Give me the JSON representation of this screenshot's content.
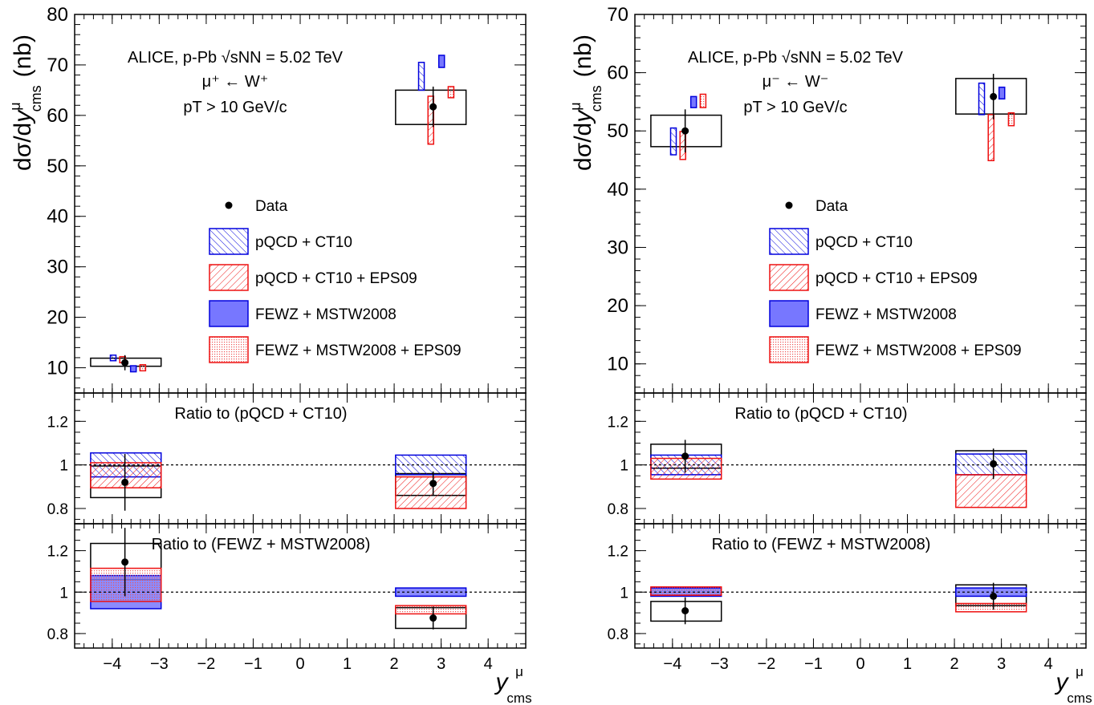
{
  "colors": {
    "data": "#000000",
    "ct10": "#0000dd",
    "eps09": "#ee1111",
    "fewz_fill": "#7777ff",
    "fewz_eps_fill": "#ffaaaa"
  },
  "axis_text": {
    "ylabel_main": "dσ/dy",
    "ylabel_sup": "μ",
    "ylabel_sub": "cms",
    "ylabel_unit": "(nb)",
    "xlabel_main": "y",
    "xlabel_sup": "μ",
    "xlabel_sub": "cms",
    "x_ticks": [
      "−4",
      "−3",
      "−2",
      "−1",
      "0",
      "1",
      "2",
      "3",
      "4"
    ],
    "ratio_ticks": [
      "0.8",
      "1",
      "1.2"
    ]
  },
  "legend": {
    "data": "Data",
    "ct10": "pQCD + CT10",
    "ct10_eps": "pQCD + CT10 + EPS09",
    "fewz": "FEWZ + MSTW2008",
    "fewz_eps": "FEWZ + MSTW2008 + EPS09"
  },
  "ratio_labels": {
    "ct10": "Ratio to (pQCD + CT10)",
    "fewz": "Ratio to (FEWZ + MSTW2008)"
  },
  "chart_data": [
    {
      "type": "scatter",
      "panel": "W+",
      "header": "ALICE, p-Pb √sNN = 5.02 TeV",
      "process": "μ⁺ ← W⁺",
      "cut": "pT > 10 GeV/c",
      "xlim": [
        -4.8,
        4.8
      ],
      "ylim": [
        5,
        80
      ],
      "y_ticks": [
        10,
        20,
        30,
        40,
        50,
        60,
        70,
        80
      ],
      "xlabel": "y cms μ",
      "ylabel": "dσ/dy cms μ (nb)",
      "data": [
        {
          "x": -3.73,
          "y": 11.0,
          "stat": 1.5,
          "syst_lo": 10.3,
          "syst_hi": 11.9,
          "bin": [
            -4.46,
            -2.96
          ]
        },
        {
          "x": 2.83,
          "y": 61.7,
          "stat": 4.0,
          "syst_lo": 58.2,
          "syst_hi": 65.0,
          "bin": [
            2.03,
            3.53
          ]
        }
      ],
      "models": {
        "ct10": [
          {
            "x": -3.73,
            "lo": 11.4,
            "hi": 12.5
          },
          {
            "x": 2.83,
            "lo": 65.0,
            "hi": 70.5
          }
        ],
        "ct10_eps": [
          {
            "x": -3.73,
            "lo": 11.0,
            "hi": 12.2
          },
          {
            "x": 2.83,
            "lo": 54.3,
            "hi": 63.8
          }
        ],
        "fewz": [
          {
            "x": -3.73,
            "lo": 9.2,
            "hi": 10.4
          },
          {
            "x": 2.83,
            "lo": 69.5,
            "hi": 71.9
          }
        ],
        "fewz_eps": [
          {
            "x": -3.73,
            "lo": 9.4,
            "hi": 10.6
          },
          {
            "x": 2.83,
            "lo": 63.5,
            "hi": 65.7
          }
        ]
      },
      "ratio_ct10": {
        "data": [
          {
            "x": -3.73,
            "y": 0.92,
            "stat": 0.13,
            "syst_lo": 0.85,
            "syst_hi": 0.995
          },
          {
            "x": 2.83,
            "y": 0.915,
            "stat": 0.055,
            "syst_lo": 0.86,
            "syst_hi": 0.96
          }
        ],
        "ct10": [
          {
            "lo": 0.945,
            "hi": 1.055
          },
          {
            "lo": 0.955,
            "hi": 1.045
          }
        ],
        "ct10_eps": [
          {
            "lo": 0.895,
            "hi": 1.01
          },
          {
            "lo": 0.8,
            "hi": 0.945
          }
        ]
      },
      "ratio_fewz": {
        "data": [
          {
            "x": -3.73,
            "y": 1.145,
            "stat": 0.165,
            "syst_lo": 1.06,
            "syst_hi": 1.235
          },
          {
            "x": 2.83,
            "y": 0.875,
            "stat": 0.055,
            "syst_lo": 0.825,
            "syst_hi": 0.925
          }
        ],
        "fewz": [
          {
            "lo": 0.92,
            "hi": 1.08
          },
          {
            "lo": 0.98,
            "hi": 1.02
          }
        ],
        "fewz_eps": [
          {
            "lo": 0.955,
            "hi": 1.115
          },
          {
            "lo": 0.895,
            "hi": 0.935
          }
        ]
      }
    },
    {
      "type": "scatter",
      "panel": "W-",
      "header": "ALICE, p-Pb √sNN = 5.02 TeV",
      "process": "μ⁻ ← W⁻",
      "cut": "pT > 10 GeV/c",
      "xlim": [
        -4.8,
        4.8
      ],
      "ylim": [
        5,
        70
      ],
      "y_ticks": [
        10,
        20,
        30,
        40,
        50,
        60,
        70
      ],
      "xlabel": "y cms μ",
      "ylabel": "dσ/dy cms μ (nb)",
      "data": [
        {
          "x": -3.73,
          "y": 50.0,
          "stat": 3.7,
          "syst_lo": 47.3,
          "syst_hi": 52.7,
          "bin": [
            -4.46,
            -2.96
          ]
        },
        {
          "x": 2.83,
          "y": 55.9,
          "stat": 3.9,
          "syst_lo": 52.9,
          "syst_hi": 59.0,
          "bin": [
            2.03,
            3.53
          ]
        }
      ],
      "models": {
        "ct10": [
          {
            "x": -3.73,
            "lo": 45.9,
            "hi": 50.5
          },
          {
            "x": 2.83,
            "lo": 52.8,
            "hi": 58.2
          }
        ],
        "ct10_eps": [
          {
            "x": -3.73,
            "lo": 45.1,
            "hi": 49.9
          },
          {
            "x": 2.83,
            "lo": 44.9,
            "hi": 52.8
          }
        ],
        "fewz": [
          {
            "x": -3.73,
            "lo": 54.0,
            "hi": 55.9
          },
          {
            "x": 2.83,
            "lo": 55.5,
            "hi": 57.5
          }
        ],
        "fewz_eps": [
          {
            "x": -3.73,
            "lo": 54.0,
            "hi": 56.3
          },
          {
            "x": 2.83,
            "lo": 50.9,
            "hi": 53.1
          }
        ]
      },
      "ratio_ct10": {
        "data": [
          {
            "x": -3.73,
            "y": 1.04,
            "stat": 0.075,
            "syst_lo": 0.985,
            "syst_hi": 1.095
          },
          {
            "x": 2.83,
            "y": 1.005,
            "stat": 0.07,
            "syst_lo": 0.955,
            "syst_hi": 1.065
          }
        ],
        "ct10": [
          {
            "lo": 0.955,
            "hi": 1.045
          },
          {
            "lo": 0.955,
            "hi": 1.05
          }
        ],
        "ct10_eps": [
          {
            "lo": 0.935,
            "hi": 1.03
          },
          {
            "lo": 0.805,
            "hi": 0.955
          }
        ]
      },
      "ratio_fewz": {
        "data": [
          {
            "x": -3.73,
            "y": 0.91,
            "stat": 0.065,
            "syst_lo": 0.86,
            "syst_hi": 0.955
          },
          {
            "x": 2.83,
            "y": 0.98,
            "stat": 0.065,
            "syst_lo": 0.935,
            "syst_hi": 1.035
          }
        ],
        "fewz": [
          {
            "lo": 0.98,
            "hi": 1.02
          },
          {
            "lo": 0.98,
            "hi": 1.02
          }
        ],
        "fewz_eps": [
          {
            "lo": 0.985,
            "hi": 1.025
          },
          {
            "lo": 0.905,
            "hi": 0.945
          }
        ]
      }
    }
  ]
}
